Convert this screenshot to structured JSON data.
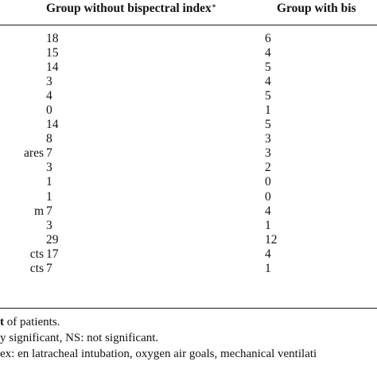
{
  "table": {
    "headers": {
      "col1": "Group without bispectral index",
      "col1_mark": "*",
      "col2": "Group with bis"
    },
    "rows": [
      {
        "label": "",
        "v1": "18",
        "v2": "6"
      },
      {
        "label": "",
        "v1": "15",
        "v2": "4"
      },
      {
        "label": "",
        "v1": "14",
        "v2": "5"
      },
      {
        "label": "",
        "v1": "3",
        "v2": "4"
      },
      {
        "label": "",
        "v1": "4",
        "v2": "5"
      },
      {
        "label": "",
        "v1": "0",
        "v2": "1"
      },
      {
        "label": "",
        "v1": "14",
        "v2": "5"
      },
      {
        "label": "",
        "v1": "8",
        "v2": "3"
      },
      {
        "label": "ares",
        "v1": "7",
        "v2": "3"
      },
      {
        "label": "",
        "v1": "3",
        "v2": "2"
      },
      {
        "label": "",
        "v1": "1",
        "v2": "0"
      },
      {
        "label": "",
        "v1": "1",
        "v2": "0"
      },
      {
        "label": "m",
        "v1": "7",
        "v2": "4"
      },
      {
        "label": "",
        "v1": "3",
        "v2": "1"
      },
      {
        "label": "",
        "v1": "29",
        "v2": "12"
      },
      {
        "label": "cts",
        "v1": "17",
        "v2": "4"
      },
      {
        "label": "cts",
        "v1": "7",
        "v2": "1"
      }
    ]
  },
  "footnotes": [
    {
      "bold": "t",
      "rest": " of patients."
    },
    {
      "bold": "",
      "rest": "y significant, NS: not significant."
    },
    {
      "bold": "",
      "rest": "ex: en latracheal intubation, oxygen air goals, mechanical ventilati"
    }
  ]
}
